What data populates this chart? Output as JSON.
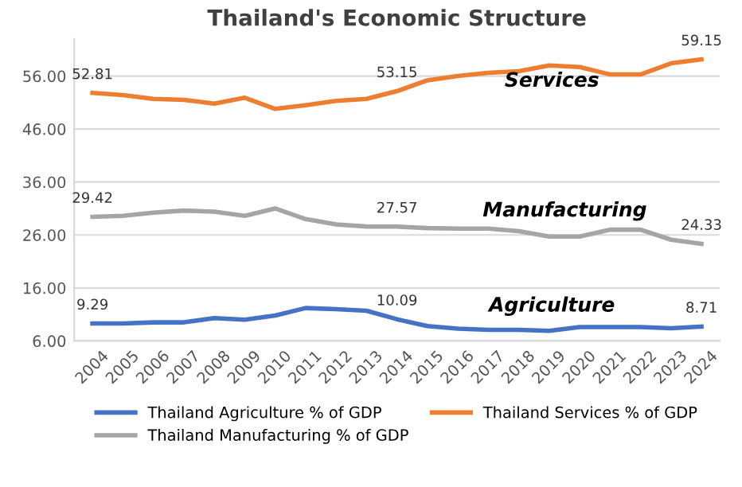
{
  "chart_data": {
    "type": "line",
    "title": "Thailand's Economic Structure",
    "categories": [
      "2004",
      "2005",
      "2006",
      "2007",
      "2008",
      "2009",
      "2010",
      "2011",
      "2012",
      "2013",
      "2014",
      "2015",
      "2016",
      "2017",
      "2018",
      "2019",
      "2020",
      "2021",
      "2022",
      "2023",
      "2024"
    ],
    "series": [
      {
        "name": "Thailand Agriculture % of GDP",
        "color": "#4472c4",
        "values": [
          9.29,
          9.3,
          9.5,
          9.5,
          10.3,
          10.0,
          10.8,
          12.2,
          12.0,
          11.7,
          10.09,
          8.8,
          8.3,
          8.1,
          8.1,
          7.9,
          8.6,
          8.6,
          8.6,
          8.4,
          8.71
        ],
        "value_labels": [
          "9.29",
          null,
          null,
          null,
          null,
          null,
          null,
          null,
          null,
          null,
          "10.09",
          null,
          null,
          null,
          null,
          null,
          null,
          null,
          null,
          null,
          "8.71"
        ]
      },
      {
        "name": "Thailand Services % of GDP",
        "color": "#ed7d31",
        "values": [
          52.81,
          52.4,
          51.7,
          51.5,
          50.8,
          51.9,
          49.8,
          50.5,
          51.3,
          51.7,
          53.15,
          55.2,
          56.0,
          56.6,
          56.9,
          58.0,
          57.7,
          56.3,
          56.3,
          58.4,
          59.15
        ],
        "value_labels": [
          "52.81",
          null,
          null,
          null,
          null,
          null,
          null,
          null,
          null,
          null,
          "53.15",
          null,
          null,
          null,
          null,
          null,
          null,
          null,
          null,
          null,
          "59.15"
        ]
      },
      {
        "name": "Thailand Manufacturing % of GDP",
        "color": "#a5a5a5",
        "values": [
          29.42,
          29.6,
          30.2,
          30.6,
          30.4,
          29.6,
          31.0,
          29.0,
          28.0,
          27.6,
          27.57,
          27.3,
          27.2,
          27.2,
          26.7,
          25.7,
          25.7,
          27.0,
          27.0,
          25.1,
          24.33
        ],
        "value_labels": [
          "29.42",
          null,
          null,
          null,
          null,
          null,
          null,
          null,
          null,
          null,
          "27.57",
          null,
          null,
          null,
          null,
          null,
          null,
          null,
          null,
          null,
          "24.33"
        ]
      }
    ],
    "annotations": [
      "Services",
      "Manufacturing",
      "Agriculture"
    ],
    "ylim": [
      6,
      63
    ],
    "yticks": [
      {
        "value": 6,
        "label": "6.00"
      },
      {
        "value": 16,
        "label": "16.00"
      },
      {
        "value": 26,
        "label": "26.00"
      },
      {
        "value": 36,
        "label": "36.00"
      },
      {
        "value": 46,
        "label": "46.00"
      },
      {
        "value": 56,
        "label": "56.00"
      }
    ],
    "grid": "y",
    "legend": "bottom",
    "marker": "none",
    "line_style": "solid"
  }
}
